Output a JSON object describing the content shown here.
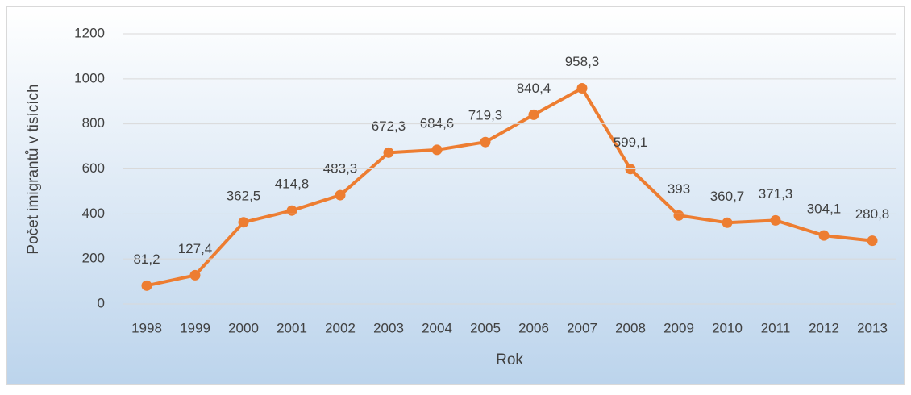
{
  "chart_data": {
    "type": "line",
    "x_label": "Rok",
    "y_label": "Počet imigrantů v tisících",
    "categories": [
      "1998",
      "1999",
      "2000",
      "2001",
      "2002",
      "2003",
      "2004",
      "2005",
      "2006",
      "2007",
      "2008",
      "2009",
      "2010",
      "2011",
      "2012",
      "2013"
    ],
    "series": [
      {
        "name": "Počet imigrantů",
        "color": "#ed7d31",
        "values": [
          81.2,
          127.4,
          362.5,
          414.8,
          483.3,
          672.3,
          684.6,
          719.3,
          840.4,
          958.3,
          599.1,
          393,
          360.7,
          371.3,
          304.1,
          280.8
        ],
        "value_labels": [
          "81,2",
          "127,4",
          "362,5",
          "414,8",
          "483,3",
          "672,3",
          "684,6",
          "719,3",
          "840,4",
          "958,3",
          "599,1",
          "393",
          "360,7",
          "371,3",
          "304,1",
          "280,8"
        ]
      }
    ],
    "ylim": [
      0,
      1200
    ],
    "yticks": [
      0,
      200,
      400,
      600,
      800,
      1000,
      1200
    ],
    "grid": true
  }
}
